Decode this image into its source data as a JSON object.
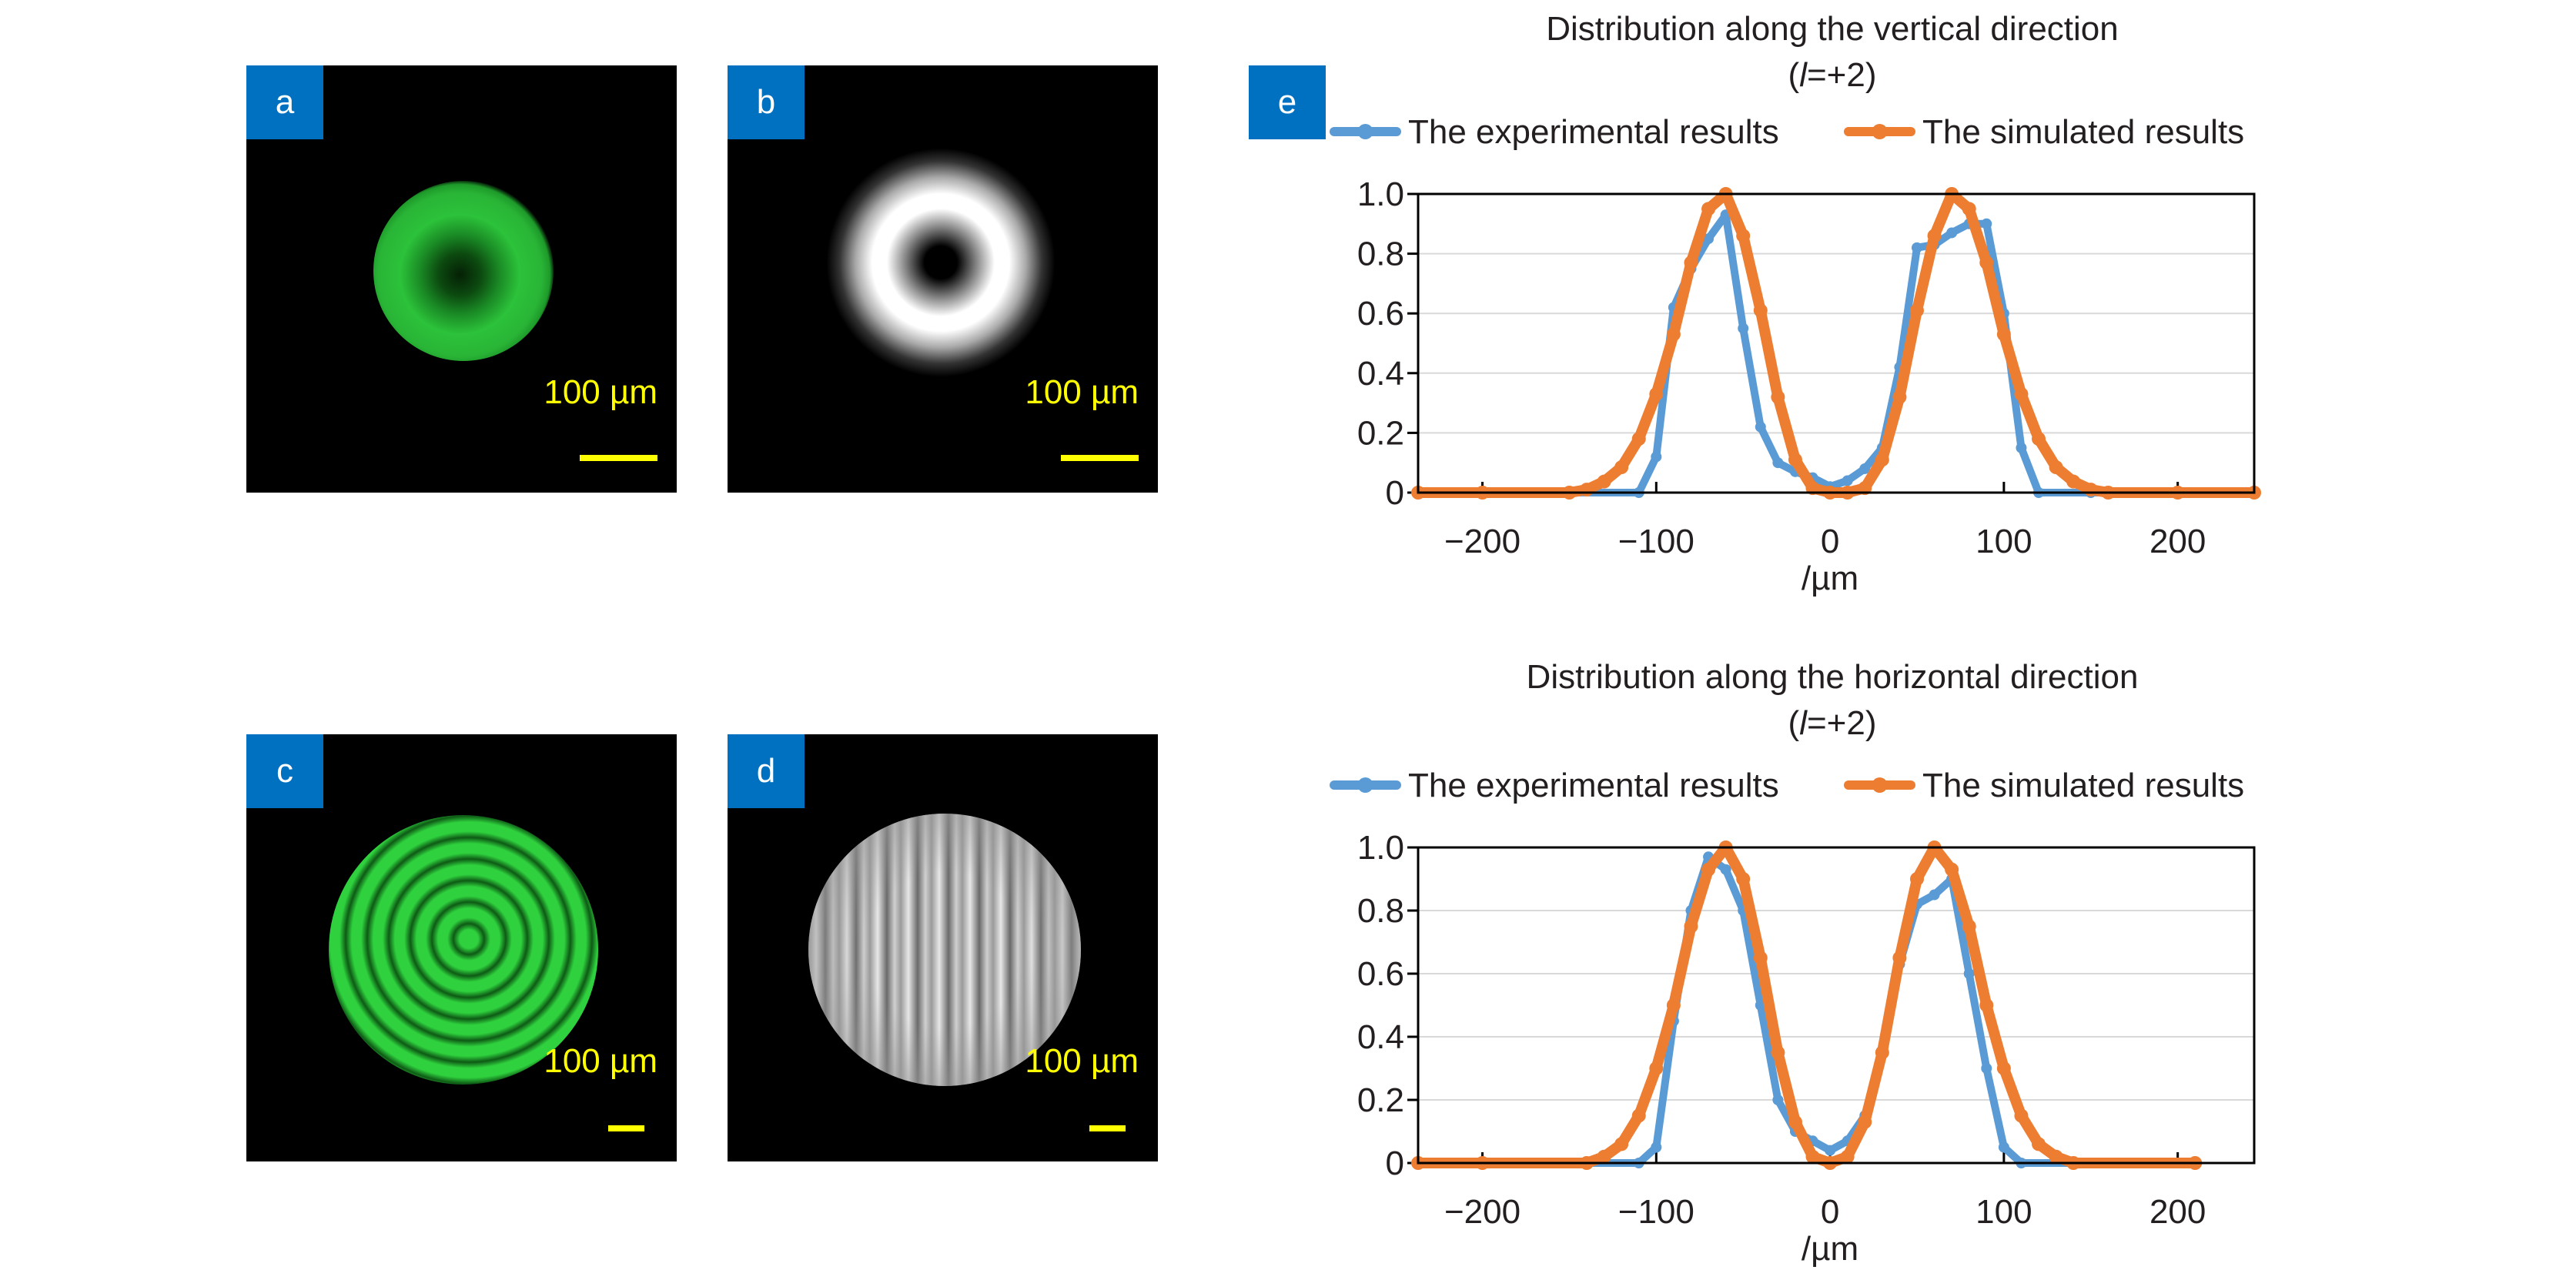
{
  "panels": {
    "a": {
      "label": "a",
      "scale_bar": "100 µm"
    },
    "b": {
      "label": "b",
      "scale_bar": "100 µm"
    },
    "c": {
      "label": "c",
      "scale_bar": "100 µm"
    },
    "d": {
      "label": "d",
      "scale_bar": "100 µm"
    },
    "e": {
      "label": "e"
    }
  },
  "colors": {
    "experimental": "#5b9bd5",
    "simulated": "#ed7d31",
    "panel_tag": "#0070c0",
    "scale_bar": "#ffff00"
  },
  "chart_data": [
    {
      "type": "line",
      "title": "Distribution along the vertical direction",
      "subtitle_open": "(",
      "subtitle_var": "l",
      "subtitle_close": "=+2)",
      "xlabel": "/µm",
      "ylabel": "",
      "xlim": [
        -237,
        244
      ],
      "ylim": [
        0,
        1.0
      ],
      "xticks": [
        -200,
        -100,
        0,
        100,
        200
      ],
      "xtick_labels": [
        "−200",
        "−100",
        "0",
        "100",
        "200"
      ],
      "yticks": [
        0,
        0.2,
        0.4,
        0.6,
        0.8,
        1.0
      ],
      "ytick_labels": [
        "0",
        "0.2",
        "0.4",
        "0.6",
        "0.8",
        "1.0"
      ],
      "grid": "horizontal",
      "legend_position": "top",
      "series": [
        {
          "name": "The experimental results",
          "x": [
            -237,
            -200,
            -150,
            -110,
            -100,
            -90,
            -80,
            -70,
            -60,
            -50,
            -40,
            -30,
            -20,
            -10,
            0,
            10,
            20,
            30,
            40,
            50,
            60,
            70,
            80,
            90,
            100,
            110,
            120,
            150,
            200,
            244
          ],
          "y": [
            0,
            0,
            0,
            0,
            0.12,
            0.62,
            0.75,
            0.85,
            0.93,
            0.55,
            0.22,
            0.1,
            0.07,
            0.05,
            0.02,
            0.04,
            0.08,
            0.15,
            0.42,
            0.82,
            0.83,
            0.87,
            0.9,
            0.9,
            0.6,
            0.15,
            0,
            0,
            0,
            0
          ]
        },
        {
          "name": "The simulated results",
          "x": [
            -237,
            -200,
            -150,
            -140,
            -130,
            -120,
            -110,
            -100,
            -90,
            -80,
            -70,
            -60,
            -50,
            -40,
            -30,
            -20,
            -10,
            0,
            10,
            20,
            30,
            40,
            50,
            60,
            70,
            80,
            90,
            100,
            110,
            120,
            130,
            140,
            150,
            160,
            200,
            244
          ],
          "y": [
            0,
            0,
            0,
            0.01,
            0.037,
            0.085,
            0.18,
            0.33,
            0.53,
            0.77,
            0.95,
            1.0,
            0.86,
            0.61,
            0.32,
            0.11,
            0.015,
            0,
            0,
            0.015,
            0.11,
            0.32,
            0.61,
            0.86,
            1.0,
            0.95,
            0.77,
            0.53,
            0.33,
            0.18,
            0.085,
            0.037,
            0.01,
            0,
            0,
            0
          ]
        }
      ]
    },
    {
      "type": "line",
      "title": "Distribution along the horizontal direction",
      "subtitle_open": "(",
      "subtitle_var": "l",
      "subtitle_close": "=+2)",
      "xlabel": "/µm",
      "ylabel": "",
      "xlim": [
        -237,
        244
      ],
      "ylim": [
        0,
        1.0
      ],
      "xticks": [
        -200,
        -100,
        0,
        100,
        200
      ],
      "xtick_labels": [
        "−200",
        "−100",
        "0",
        "100",
        "200"
      ],
      "yticks": [
        0,
        0.2,
        0.4,
        0.6,
        0.8,
        1.0
      ],
      "ytick_labels": [
        "0",
        "0.2",
        "0.4",
        "0.6",
        "0.8",
        "1.0"
      ],
      "grid": "horizontal",
      "legend_position": "top",
      "series": [
        {
          "name": "The experimental results",
          "x": [
            -237,
            -200,
            -150,
            -110,
            -100,
            -90,
            -80,
            -70,
            -60,
            -50,
            -40,
            -30,
            -20,
            -10,
            0,
            10,
            20,
            30,
            40,
            50,
            60,
            70,
            80,
            90,
            100,
            110,
            150,
            210
          ],
          "y": [
            0,
            0,
            0,
            0,
            0.05,
            0.45,
            0.8,
            0.97,
            0.93,
            0.8,
            0.5,
            0.2,
            0.1,
            0.07,
            0.04,
            0.07,
            0.15,
            0.35,
            0.63,
            0.82,
            0.85,
            0.9,
            0.6,
            0.3,
            0.05,
            0,
            0,
            0
          ]
        },
        {
          "name": "The simulated results",
          "x": [
            -237,
            -200,
            -140,
            -130,
            -120,
            -110,
            -100,
            -90,
            -80,
            -70,
            -60,
            -50,
            -40,
            -30,
            -20,
            -10,
            0,
            10,
            20,
            30,
            40,
            50,
            60,
            70,
            80,
            90,
            100,
            110,
            120,
            130,
            140,
            210
          ],
          "y": [
            0,
            0,
            0,
            0.02,
            0.06,
            0.15,
            0.3,
            0.5,
            0.75,
            0.93,
            1.0,
            0.9,
            0.65,
            0.35,
            0.13,
            0.02,
            0,
            0.02,
            0.13,
            0.35,
            0.65,
            0.9,
            1.0,
            0.93,
            0.75,
            0.5,
            0.3,
            0.15,
            0.06,
            0.02,
            0,
            0
          ]
        }
      ]
    }
  ]
}
